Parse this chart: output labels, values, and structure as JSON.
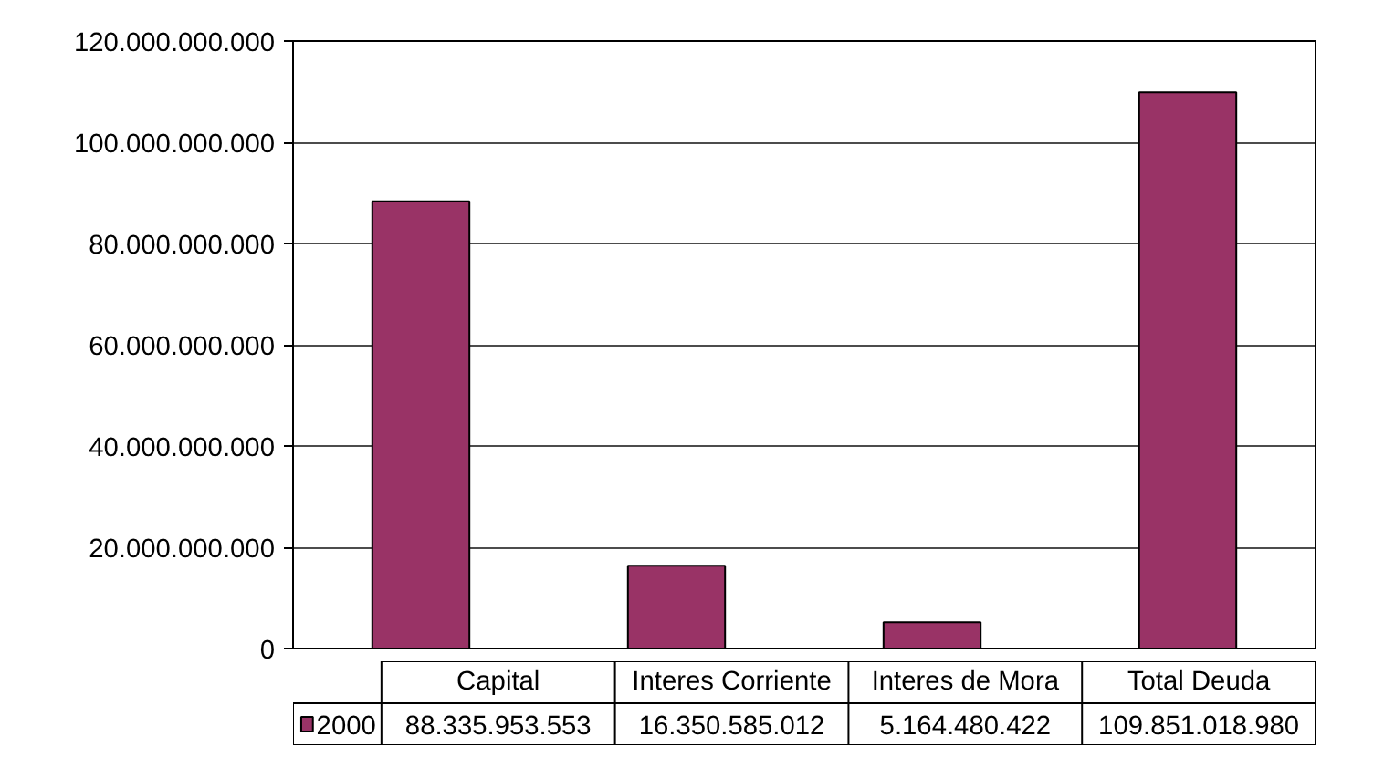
{
  "chart_data": {
    "type": "bar",
    "categories": [
      "Capital",
      "Interes Corriente",
      "Interes de Mora",
      "Total Deuda"
    ],
    "series": [
      {
        "name": "2000",
        "color": "#993366",
        "values": [
          88335953553,
          16350585012,
          5164480422,
          109851018980
        ],
        "value_labels": [
          "88.335.953.553",
          "16.350.585.012",
          "5.164.480.422",
          "109.851.018.980"
        ]
      }
    ],
    "ylim": [
      0,
      120000000000
    ],
    "yticks": [
      {
        "value": 0,
        "label": "0"
      },
      {
        "value": 20000000000,
        "label": "20.000.000.000"
      },
      {
        "value": 40000000000,
        "label": "40.000.000.000"
      },
      {
        "value": 60000000000,
        "label": "60.000.000.000"
      },
      {
        "value": 80000000000,
        "label": "80.000.000.000"
      },
      {
        "value": 100000000000,
        "label": "100.000.000.000"
      },
      {
        "value": 120000000000,
        "label": "120.000.000.000"
      }
    ],
    "grid": "y",
    "legend": "bottom"
  }
}
